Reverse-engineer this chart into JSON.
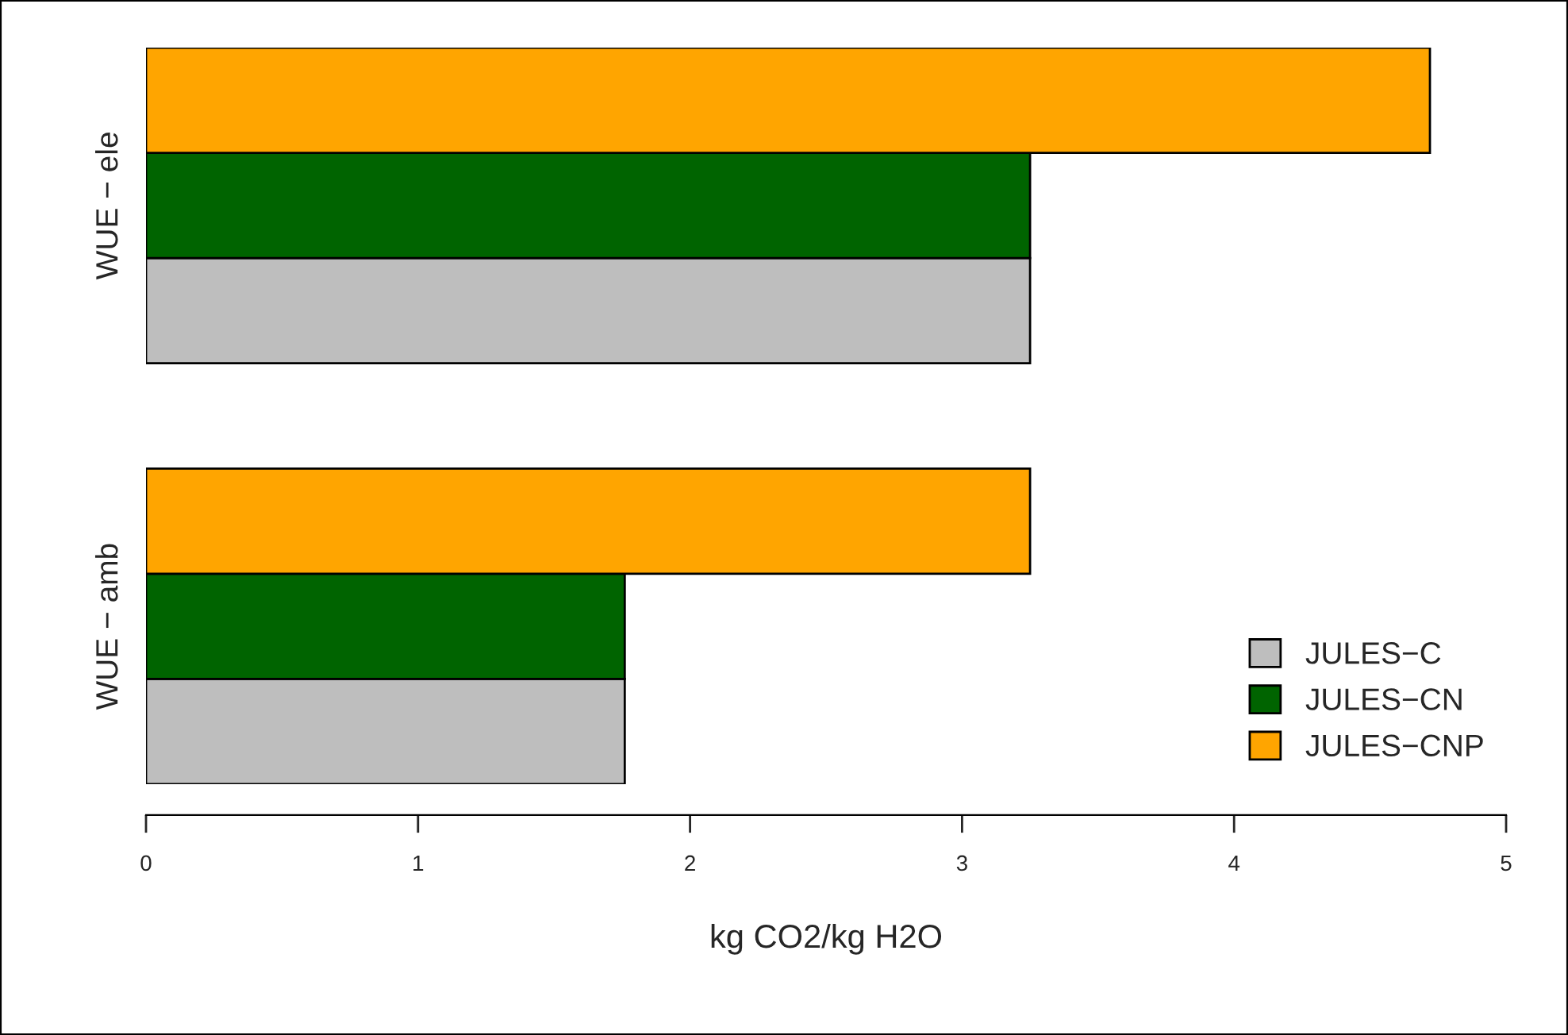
{
  "chart_data": {
    "type": "bar",
    "orientation": "horizontal",
    "xlabel": "kg CO2/kg H2O",
    "categories": [
      "WUE − ele",
      "WUE − amb"
    ],
    "series": [
      {
        "name": "JULES−C",
        "color": "#bebebe",
        "values": [
          3.25,
          1.76
        ]
      },
      {
        "name": "JULES−CN",
        "color": "#006400",
        "values": [
          3.25,
          1.76
        ]
      },
      {
        "name": "JULES−CNP",
        "color": "#ffa500",
        "values": [
          4.72,
          3.25
        ]
      }
    ],
    "xlim": [
      0,
      5
    ],
    "xticks": [
      0,
      1,
      2,
      3,
      4,
      5
    ],
    "grid": false,
    "legend": "bottom right"
  }
}
